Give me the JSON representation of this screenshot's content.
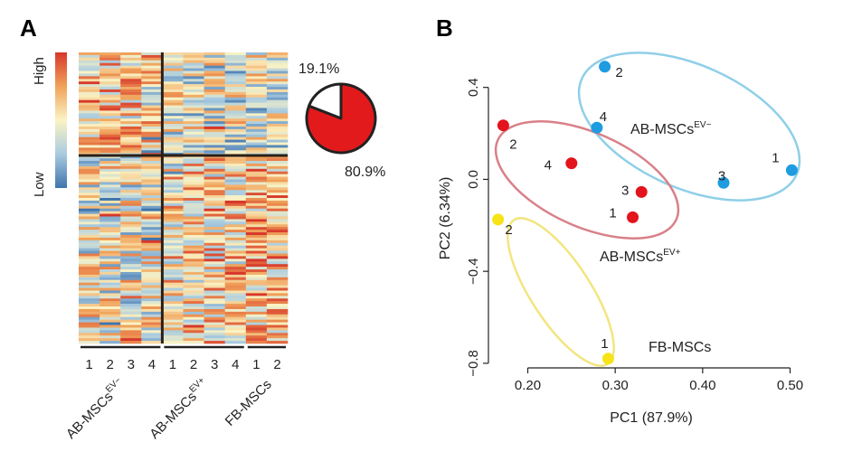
{
  "chart_data": [
    {
      "type": "heatmap",
      "panel": "A",
      "legend": {
        "high": "High",
        "low": "Low",
        "colors": [
          "#d7372a",
          "#f0a25a",
          "#fbf3c4",
          "#a9cbe0",
          "#3f74ad"
        ]
      },
      "columns": [
        "1",
        "2",
        "3",
        "4",
        "1",
        "2",
        "3",
        "4",
        "1",
        "2"
      ],
      "groups": [
        {
          "name": "AB-MSCs",
          "sup": "EV−",
          "columns": 4
        },
        {
          "name": "AB-MSCs",
          "sup": "EV+",
          "columns": 4
        },
        {
          "name": "FB-MSCs",
          "sup": "",
          "columns": 2
        }
      ],
      "pie": {
        "slices": [
          {
            "label": "19.1%",
            "value": 19.1,
            "color": "#ffffff"
          },
          {
            "label": "80.9%",
            "value": 80.9,
            "color": "#e31a1c"
          }
        ]
      }
    },
    {
      "type": "scatter",
      "panel": "B",
      "xlabel": "PC1 (87.9%)",
      "ylabel": "PC2 (6.34%)",
      "xlim": [
        0.155,
        0.515
      ],
      "ylim": [
        -0.82,
        0.56
      ],
      "xticks": [
        0.2,
        0.3,
        0.4,
        0.5
      ],
      "xtick_labels": [
        "0.20",
        "0.30",
        "0.40",
        "0.50"
      ],
      "yticks": [
        0.4,
        0.0,
        -0.4,
        -0.8
      ],
      "ytick_labels": [
        "0.4",
        "0.0",
        "−0.4",
        "−0.8"
      ],
      "series": [
        {
          "name": "AB-MSCs",
          "sup": "EV−",
          "color": "#1f9be0",
          "ellipse_color": "#8fcfe8",
          "points": [
            {
              "label": "1",
              "x": 0.502,
              "y": 0.04
            },
            {
              "label": "2",
              "x": 0.288,
              "y": 0.49
            },
            {
              "label": "3",
              "x": 0.424,
              "y": -0.015
            },
            {
              "label": "4",
              "x": 0.279,
              "y": 0.225
            }
          ]
        },
        {
          "name": "AB-MSCs",
          "sup": "EV+",
          "color": "#e3141c",
          "ellipse_color": "#d98088",
          "points": [
            {
              "label": "1",
              "x": 0.32,
              "y": -0.165
            },
            {
              "label": "2",
              "x": 0.172,
              "y": 0.235
            },
            {
              "label": "3",
              "x": 0.33,
              "y": -0.055
            },
            {
              "label": "4",
              "x": 0.25,
              "y": 0.07
            }
          ]
        },
        {
          "name": "FB-MSCs",
          "sup": "",
          "color": "#f7e317",
          "ellipse_color": "#f2e580",
          "points": [
            {
              "label": "1",
              "x": 0.292,
              "y": -0.78
            },
            {
              "label": "2",
              "x": 0.166,
              "y": -0.175
            }
          ]
        }
      ]
    }
  ]
}
